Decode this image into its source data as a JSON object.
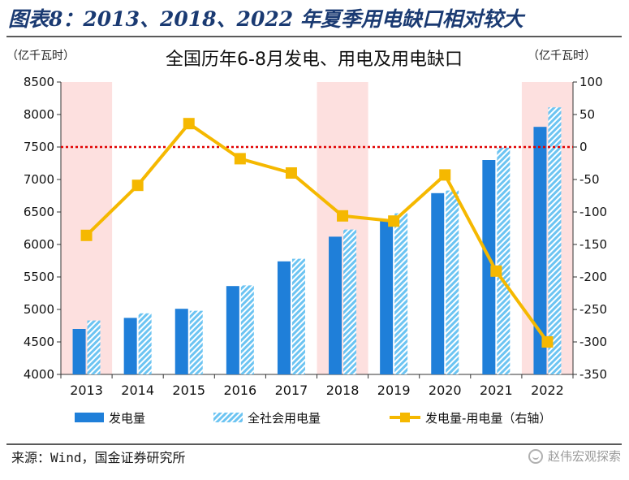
{
  "figure": {
    "title": "图表8：2013、2018、2022 年夏季用电缺口相对较大",
    "source": "来源：Wind，国金证券研究所",
    "watermark": "赵伟宏观探索"
  },
  "colors": {
    "bar_generation": "#1f7fd9",
    "bar_consumption_hatch": "#6cc4f2",
    "line_gap": "#f5b800",
    "zero_line": "#e00000",
    "highlight_band": "#fde0df",
    "title": "#1a3a72"
  },
  "chart_data": {
    "type": "bar",
    "title": "全国历年6-8月发电、用电及用电缺口",
    "left_unit": "（亿千瓦时）",
    "right_unit": "（亿千瓦时）",
    "categories": [
      "2013",
      "2014",
      "2015",
      "2016",
      "2017",
      "2018",
      "2019",
      "2020",
      "2021",
      "2022"
    ],
    "highlighted_categories": [
      "2013",
      "2018",
      "2022"
    ],
    "left_axis": {
      "min": 4000,
      "max": 8500,
      "step": 500,
      "ticks": [
        "4000",
        "4500",
        "5000",
        "5500",
        "6000",
        "6500",
        "7000",
        "7500",
        "8000",
        "8500"
      ]
    },
    "right_axis": {
      "min": -350,
      "max": 100,
      "step": 50,
      "ticks": [
        "-350",
        "-300",
        "-250",
        "-200",
        "-150",
        "-100",
        "-50",
        "0",
        "50",
        "100"
      ]
    },
    "series": [
      {
        "name": "发电量",
        "kind": "bar",
        "axis": "left",
        "values": [
          4700,
          4870,
          5010,
          5360,
          5740,
          6120,
          6360,
          6790,
          7300,
          7810
        ]
      },
      {
        "name": "全社会用电量",
        "kind": "bar-hatched",
        "axis": "left",
        "values": [
          4830,
          4940,
          4980,
          5370,
          5780,
          6230,
          6480,
          6830,
          7490,
          8110
        ]
      },
      {
        "name": "发电量-用电量（右轴）",
        "kind": "line",
        "axis": "right",
        "values": [
          -136,
          -59,
          36,
          -18,
          -40,
          -106,
          -114,
          -43,
          -191,
          -300
        ]
      }
    ],
    "zero_reference_line": {
      "axis": "right",
      "value": 0,
      "style": "dotted"
    },
    "grid": false,
    "legend_position": "bottom"
  }
}
